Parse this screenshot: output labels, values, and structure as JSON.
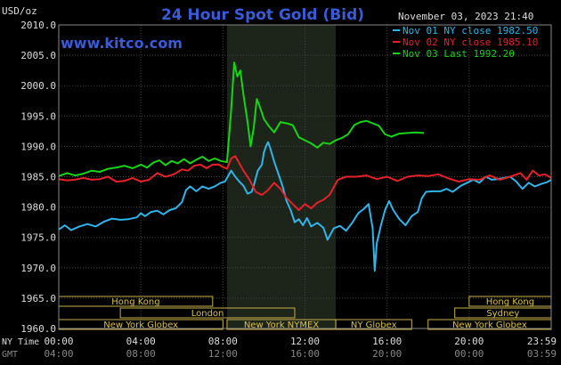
{
  "chart_data": {
    "type": "line",
    "title": "24 Hour Spot Gold (Bid)",
    "website": "www.kitco.com",
    "unit_label": "USD/oz",
    "timestamp": "November 03, 2023 21:40",
    "ylim": [
      1960,
      2010
    ],
    "y_ticks": [
      "2010.0",
      "2005.0",
      "2000.0",
      "1995.0",
      "1990.0",
      "1985.0",
      "1980.0",
      "1975.0",
      "1970.0",
      "1965.0",
      "1960.0"
    ],
    "x_row_labels": {
      "ny": "NY Time",
      "gmt": "GMT"
    },
    "x_ticks_ny": [
      "00:00",
      "04:00",
      "08:00",
      "12:00",
      "16:00",
      "20:00",
      "23:59"
    ],
    "x_ticks_gmt": [
      "04:00",
      "08:00",
      "12:00",
      "16:00",
      "20:00",
      "00:00",
      "03:59"
    ],
    "sessions": [
      {
        "name": "Hong Kong",
        "row": 0,
        "start": 0,
        "end": 7.5
      },
      {
        "name": "London",
        "row": 1,
        "start": 3.0,
        "end": 11.5
      },
      {
        "name": "New York Globex",
        "row": 2,
        "start": 0,
        "end": 8.0
      },
      {
        "name": "New York NYMEX",
        "row": 2,
        "start": 8.2,
        "end": 13.5
      },
      {
        "name": "NY Globex",
        "row": 2,
        "start": 13.5,
        "end": 17.2
      },
      {
        "name": "Hong Kong",
        "row": 0,
        "start": 20.0,
        "end": 24.0
      },
      {
        "name": "Sydney",
        "row": 1,
        "start": 19.3,
        "end": 24.0
      },
      {
        "name": "New York Globex",
        "row": 2,
        "start": 18.0,
        "end": 24.0
      }
    ],
    "highlight_range": [
      8.2,
      13.5
    ],
    "series": [
      {
        "name": "Nov 01 NY close 1982.50",
        "color": "#2fb5ea",
        "points": [
          [
            0,
            1976.3
          ],
          [
            0.3,
            1977.0
          ],
          [
            0.6,
            1976.2
          ],
          [
            1.0,
            1976.8
          ],
          [
            1.4,
            1977.2
          ],
          [
            1.8,
            1976.8
          ],
          [
            2.2,
            1977.6
          ],
          [
            2.6,
            1978.1
          ],
          [
            3.0,
            1977.9
          ],
          [
            3.4,
            1978.0
          ],
          [
            3.8,
            1978.3
          ],
          [
            4.0,
            1979.0
          ],
          [
            4.2,
            1978.5
          ],
          [
            4.5,
            1979.2
          ],
          [
            4.8,
            1979.4
          ],
          [
            5.1,
            1978.8
          ],
          [
            5.4,
            1979.5
          ],
          [
            5.7,
            1979.8
          ],
          [
            6.0,
            1980.8
          ],
          [
            6.2,
            1982.8
          ],
          [
            6.4,
            1983.4
          ],
          [
            6.7,
            1982.6
          ],
          [
            7.0,
            1983.4
          ],
          [
            7.3,
            1983.0
          ],
          [
            7.6,
            1983.4
          ],
          [
            7.9,
            1984.0
          ],
          [
            8.1,
            1984.2
          ],
          [
            8.4,
            1986.0
          ],
          [
            8.6,
            1985.0
          ],
          [
            8.8,
            1984.2
          ],
          [
            9.0,
            1983.5
          ],
          [
            9.2,
            1982.2
          ],
          [
            9.4,
            1982.5
          ],
          [
            9.5,
            1983.5
          ],
          [
            9.7,
            1986.0
          ],
          [
            9.9,
            1987.0
          ],
          [
            10.0,
            1989.0
          ],
          [
            10.1,
            1990.0
          ],
          [
            10.2,
            1990.7
          ],
          [
            10.3,
            1989.8
          ],
          [
            10.5,
            1987.5
          ],
          [
            10.7,
            1985.5
          ],
          [
            10.9,
            1983.5
          ],
          [
            11.1,
            1981.0
          ],
          [
            11.3,
            1979.5
          ],
          [
            11.5,
            1977.5
          ],
          [
            11.7,
            1978.0
          ],
          [
            11.9,
            1977.0
          ],
          [
            12.1,
            1978.2
          ],
          [
            12.3,
            1976.8
          ],
          [
            12.6,
            1977.4
          ],
          [
            12.9,
            1976.6
          ],
          [
            13.1,
            1974.6
          ],
          [
            13.4,
            1976.5
          ],
          [
            13.7,
            1976.9
          ],
          [
            14.0,
            1976.1
          ],
          [
            14.3,
            1977.4
          ],
          [
            14.6,
            1979.0
          ],
          [
            14.9,
            1979.8
          ],
          [
            15.1,
            1980.5
          ],
          [
            15.3,
            1976.5
          ],
          [
            15.4,
            1969.5
          ],
          [
            15.5,
            1974.0
          ],
          [
            15.7,
            1977.0
          ],
          [
            15.9,
            1979.5
          ],
          [
            16.1,
            1981.0
          ],
          [
            16.3,
            1979.5
          ],
          [
            16.6,
            1978.0
          ],
          [
            16.9,
            1977.0
          ],
          [
            17.2,
            1978.5
          ],
          [
            17.5,
            1979.2
          ],
          [
            17.7,
            1981.5
          ],
          [
            17.9,
            1982.5
          ],
          [
            18.2,
            1982.6
          ],
          [
            18.6,
            1982.6
          ],
          [
            18.9,
            1983.0
          ],
          [
            19.2,
            1982.5
          ],
          [
            19.6,
            1983.5
          ],
          [
            19.9,
            1984.0
          ],
          [
            20.2,
            1984.5
          ],
          [
            20.5,
            1984.0
          ],
          [
            20.8,
            1985.0
          ],
          [
            21.1,
            1984.5
          ],
          [
            21.4,
            1984.6
          ],
          [
            21.7,
            1984.8
          ],
          [
            22.0,
            1985.0
          ],
          [
            22.3,
            1984.2
          ],
          [
            22.6,
            1983.0
          ],
          [
            22.9,
            1984.0
          ],
          [
            23.2,
            1983.4
          ],
          [
            23.5,
            1983.8
          ],
          [
            23.8,
            1984.1
          ],
          [
            24.0,
            1984.5
          ]
        ]
      },
      {
        "name": "Nov 02 NY close 1985.10",
        "color": "#e8202a",
        "points": [
          [
            0,
            1984.6
          ],
          [
            0.4,
            1984.4
          ],
          [
            0.8,
            1984.5
          ],
          [
            1.2,
            1984.8
          ],
          [
            1.6,
            1984.5
          ],
          [
            2.0,
            1984.6
          ],
          [
            2.4,
            1985.0
          ],
          [
            2.8,
            1984.2
          ],
          [
            3.2,
            1984.3
          ],
          [
            3.6,
            1984.8
          ],
          [
            4.0,
            1984.2
          ],
          [
            4.4,
            1984.5
          ],
          [
            4.8,
            1985.6
          ],
          [
            5.2,
            1985.0
          ],
          [
            5.6,
            1985.4
          ],
          [
            6.0,
            1986.2
          ],
          [
            6.3,
            1986.0
          ],
          [
            6.6,
            1986.8
          ],
          [
            6.9,
            1987.0
          ],
          [
            7.2,
            1986.4
          ],
          [
            7.5,
            1987.0
          ],
          [
            7.8,
            1987.0
          ],
          [
            8.0,
            1986.6
          ],
          [
            8.2,
            1986.3
          ],
          [
            8.4,
            1988.0
          ],
          [
            8.6,
            1988.4
          ],
          [
            8.8,
            1987.2
          ],
          [
            9.0,
            1986.0
          ],
          [
            9.3,
            1984.5
          ],
          [
            9.6,
            1982.5
          ],
          [
            9.9,
            1982.0
          ],
          [
            10.2,
            1982.8
          ],
          [
            10.5,
            1984.0
          ],
          [
            10.8,
            1983.0
          ],
          [
            11.1,
            1981.5
          ],
          [
            11.4,
            1980.5
          ],
          [
            11.7,
            1979.5
          ],
          [
            12.0,
            1980.5
          ],
          [
            12.3,
            1979.8
          ],
          [
            12.6,
            1980.7
          ],
          [
            12.9,
            1981.2
          ],
          [
            13.2,
            1982.0
          ],
          [
            13.6,
            1984.5
          ],
          [
            14.0,
            1985.0
          ],
          [
            14.5,
            1985.0
          ],
          [
            15.0,
            1985.2
          ],
          [
            15.5,
            1984.6
          ],
          [
            16.0,
            1985.0
          ],
          [
            16.5,
            1984.3
          ],
          [
            17.0,
            1985.0
          ],
          [
            17.5,
            1985.2
          ],
          [
            18.0,
            1985.1
          ],
          [
            18.5,
            1985.4
          ],
          [
            19.0,
            1984.7
          ],
          [
            19.5,
            1984.2
          ],
          [
            20.0,
            1984.6
          ],
          [
            20.5,
            1984.5
          ],
          [
            21.0,
            1985.2
          ],
          [
            21.5,
            1984.5
          ],
          [
            22.0,
            1985.0
          ],
          [
            22.5,
            1985.6
          ],
          [
            22.8,
            1984.5
          ],
          [
            23.1,
            1986.0
          ],
          [
            23.4,
            1985.2
          ],
          [
            23.7,
            1985.4
          ],
          [
            24.0,
            1984.8
          ]
        ]
      },
      {
        "name": "Nov 03 Last 1992.20",
        "color": "#17d417",
        "points": [
          [
            0,
            1985.1
          ],
          [
            0.4,
            1985.6
          ],
          [
            0.8,
            1985.2
          ],
          [
            1.2,
            1985.5
          ],
          [
            1.6,
            1986.0
          ],
          [
            2.0,
            1985.8
          ],
          [
            2.4,
            1986.3
          ],
          [
            2.8,
            1986.5
          ],
          [
            3.2,
            1986.8
          ],
          [
            3.6,
            1986.4
          ],
          [
            4.0,
            1987.0
          ],
          [
            4.3,
            1986.5
          ],
          [
            4.6,
            1987.3
          ],
          [
            4.9,
            1987.7
          ],
          [
            5.2,
            1986.9
          ],
          [
            5.5,
            1987.6
          ],
          [
            5.8,
            1987.2
          ],
          [
            6.1,
            1987.9
          ],
          [
            6.4,
            1987.2
          ],
          [
            6.7,
            1987.8
          ],
          [
            7.0,
            1988.3
          ],
          [
            7.3,
            1987.6
          ],
          [
            7.6,
            1988.0
          ],
          [
            7.9,
            1987.6
          ],
          [
            8.2,
            1987.4
          ],
          [
            8.4,
            1996.0
          ],
          [
            8.55,
            2003.8
          ],
          [
            8.7,
            2001.5
          ],
          [
            8.85,
            2002.5
          ],
          [
            9.0,
            1998.5
          ],
          [
            9.2,
            1994.0
          ],
          [
            9.35,
            1990.0
          ],
          [
            9.5,
            1993.0
          ],
          [
            9.65,
            1997.8
          ],
          [
            9.8,
            1996.5
          ],
          [
            10.0,
            1994.5
          ],
          [
            10.2,
            1993.5
          ],
          [
            10.5,
            1992.3
          ],
          [
            10.8,
            1994.0
          ],
          [
            11.1,
            1993.8
          ],
          [
            11.4,
            1993.5
          ],
          [
            11.7,
            1991.5
          ],
          [
            12.0,
            1991.0
          ],
          [
            12.3,
            1990.5
          ],
          [
            12.6,
            1989.8
          ],
          [
            12.9,
            1990.6
          ],
          [
            13.2,
            1990.4
          ],
          [
            13.5,
            1991.0
          ],
          [
            13.8,
            1991.4
          ],
          [
            14.1,
            1992.0
          ],
          [
            14.4,
            1993.5
          ],
          [
            14.7,
            1994.0
          ],
          [
            15.0,
            1994.2
          ],
          [
            15.3,
            1993.8
          ],
          [
            15.6,
            1993.4
          ],
          [
            15.9,
            1992.0
          ],
          [
            16.2,
            1991.6
          ],
          [
            16.6,
            1992.1
          ],
          [
            17.0,
            1992.2
          ],
          [
            17.4,
            1992.3
          ],
          [
            17.8,
            1992.2
          ]
        ]
      }
    ]
  }
}
